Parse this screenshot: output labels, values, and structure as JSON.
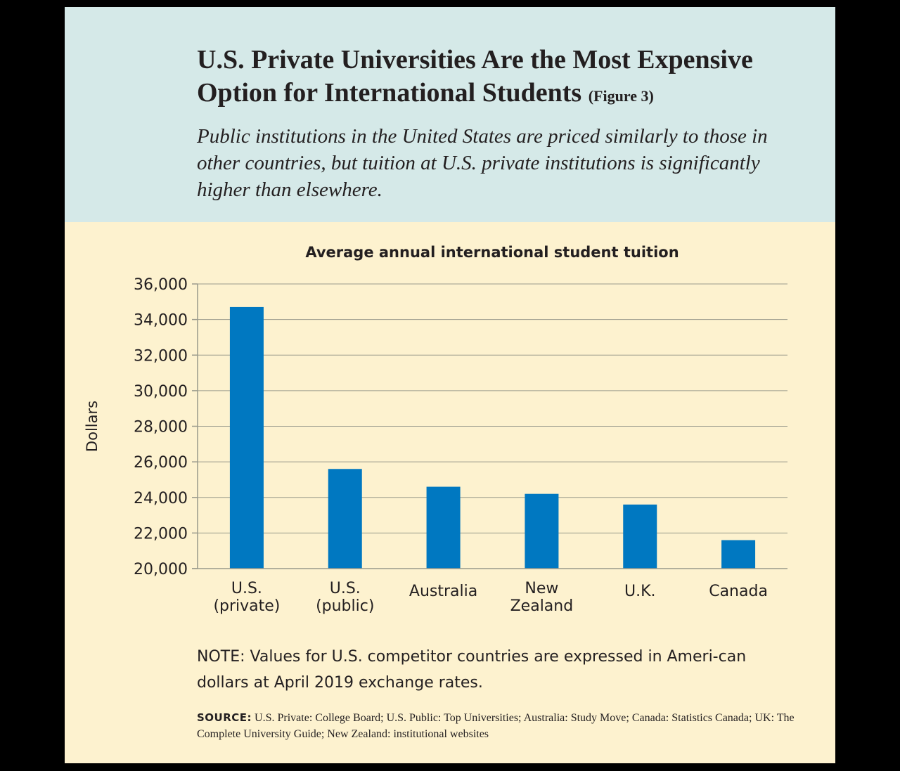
{
  "header": {
    "title": "U.S. Private Universities Are the Most Expensive Option for International Students",
    "figure_tag": "(Figure 3)",
    "subtitle": "Public institutions in the United States are priced similarly to those in other countries, but tuition at U.S. private institutions is significantly higher than elsewhere."
  },
  "note": "NOTE: Values for U.S. competitor countries are expressed in Ameri-can dollars at April 2019 exchange rates.",
  "source": {
    "label": "SOURCE:",
    "text": "U.S. Private: College Board; U.S. Public: Top Universities; Australia: Study Move; Canada: Statistics Canada; UK: The Complete University Guide; New Zealand: institutional websites"
  },
  "colors": {
    "bar": "#0078c1",
    "header_bg": "#d5e9e8",
    "body_bg": "#fdf2cf",
    "grid": "#9a9a8c"
  },
  "chart_data": {
    "type": "bar",
    "title": "Average annual international student tuition",
    "ylabel": "Dollars",
    "xlabel": "",
    "categories": [
      [
        "U.S.",
        "(private)"
      ],
      [
        "U.S.",
        "(public)"
      ],
      [
        "Australia"
      ],
      [
        "New",
        "Zealand"
      ],
      [
        "U.K."
      ],
      [
        "Canada"
      ]
    ],
    "values": [
      34700,
      25600,
      24600,
      24200,
      23600,
      21600
    ],
    "ylim": [
      20000,
      36000
    ],
    "yticks": [
      20000,
      22000,
      24000,
      26000,
      28000,
      30000,
      32000,
      34000,
      36000
    ],
    "ytick_labels": [
      "20,000",
      "22,000",
      "24,000",
      "26,000",
      "28,000",
      "30,000",
      "32,000",
      "34,000",
      "36,000"
    ],
    "grid": true,
    "legend": "none"
  }
}
